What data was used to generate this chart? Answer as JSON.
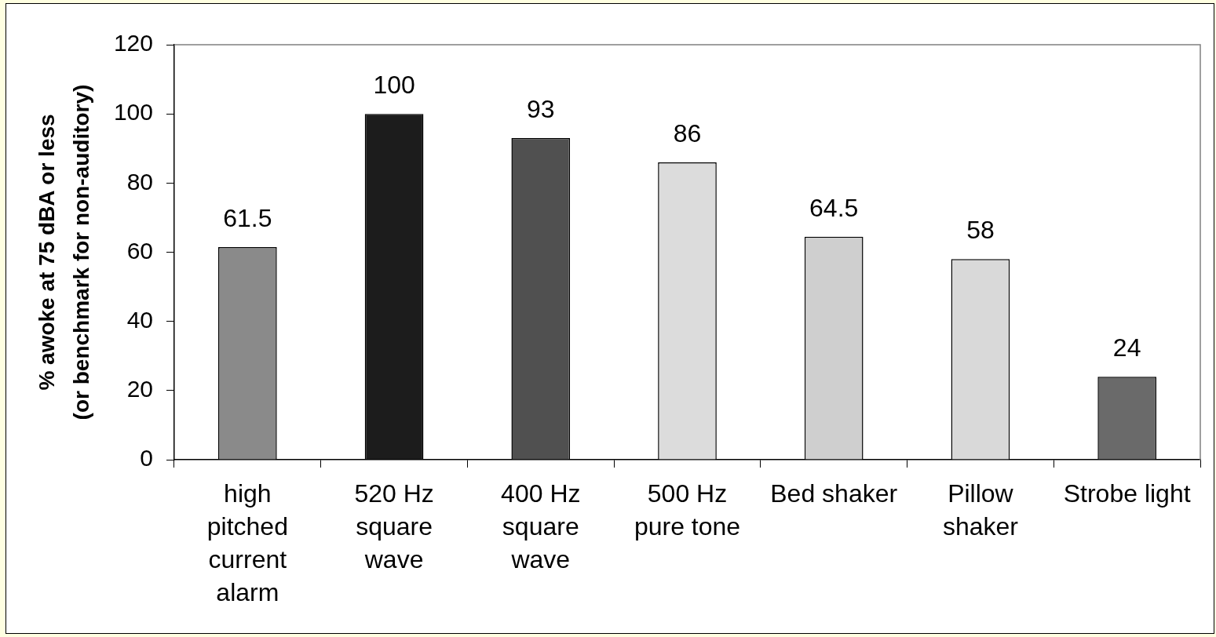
{
  "chart_data": {
    "type": "bar",
    "ylabel": "% awoke at 75 dBA or less\n(or benchmark for non-auditory)",
    "categories": [
      "high pitched current alarm",
      "520 Hz square wave",
      "400 Hz square wave",
      "500 Hz pure tone",
      "Bed shaker",
      "Pillow shaker",
      "Strobe light"
    ],
    "values": [
      61.5,
      100,
      93,
      86,
      64.5,
      58,
      24
    ],
    "colors": [
      "#8a8a8a",
      "#1c1c1c",
      "#505050",
      "#dcdcdc",
      "#cfcfcf",
      "#d9d9d9",
      "#6a6a6a"
    ],
    "ylim": [
      0,
      120
    ],
    "yticks": [
      0,
      20,
      40,
      60,
      80,
      100,
      120
    ],
    "grid": false,
    "legend": false,
    "data_labels": true
  }
}
